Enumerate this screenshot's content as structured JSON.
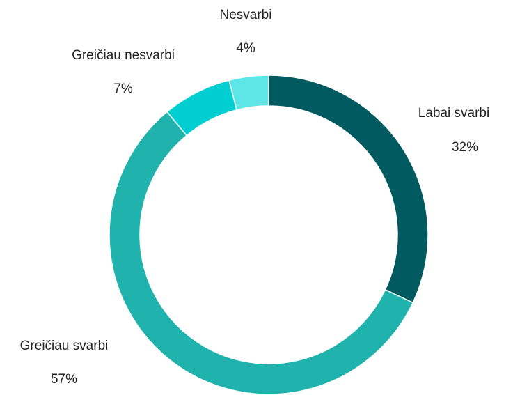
{
  "chart_data": {
    "type": "donut",
    "categories": [
      "Labai svarbi",
      "Greičiau svarbi",
      "Greičiau nesvarbi",
      "Nesvarbi"
    ],
    "values": [
      32,
      57,
      7,
      4
    ],
    "value_labels": [
      "32%",
      "57%",
      "7%",
      "4%"
    ],
    "colors": [
      "#005a5f",
      "#20b2ad",
      "#00ced1",
      "#5ee6e6"
    ]
  }
}
